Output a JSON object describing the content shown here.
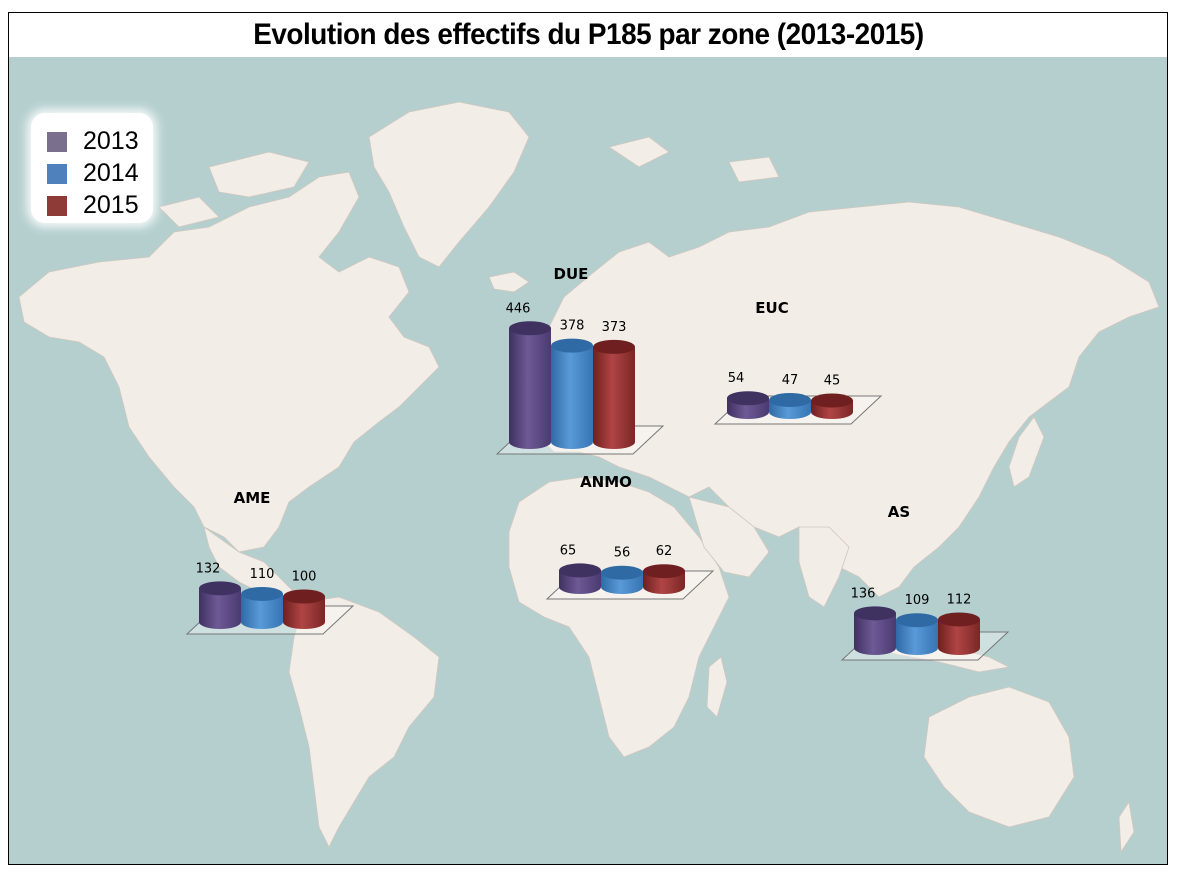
{
  "title": "Evolution des effectifs du P185 par zone (2013-2015)",
  "colors": {
    "ocean": "#b5cfcf",
    "land": "#f2ede6",
    "border": "#cfc7bf",
    "series": [
      "#6a5a8c",
      "#4a86c4",
      "#9b3535"
    ]
  },
  "legend": {
    "items": [
      {
        "label": "2013",
        "color": "#7a6f8c"
      },
      {
        "label": "2014",
        "color": "#4f81bd"
      },
      {
        "label": "2015",
        "color": "#8e3a36"
      }
    ]
  },
  "chart_data": {
    "type": "bar",
    "title": "Evolution des effectifs du P185 par zone (2013-2015)",
    "background": "world-map",
    "legend_position": "top-left",
    "series_names": [
      "2013",
      "2014",
      "2015"
    ],
    "zones": [
      {
        "name": "DUE",
        "location": "Europe",
        "values": [
          446,
          378,
          373
        ]
      },
      {
        "name": "EUC",
        "location": "Russia / Central Asia",
        "values": [
          54,
          47,
          45
        ]
      },
      {
        "name": "AME",
        "location": "Central America",
        "values": [
          132,
          110,
          100
        ]
      },
      {
        "name": "ANMO",
        "location": "North Africa / Middle East",
        "values": [
          65,
          56,
          62
        ]
      },
      {
        "name": "AS",
        "location": "South-East Asia",
        "values": [
          136,
          109,
          112
        ]
      }
    ]
  }
}
